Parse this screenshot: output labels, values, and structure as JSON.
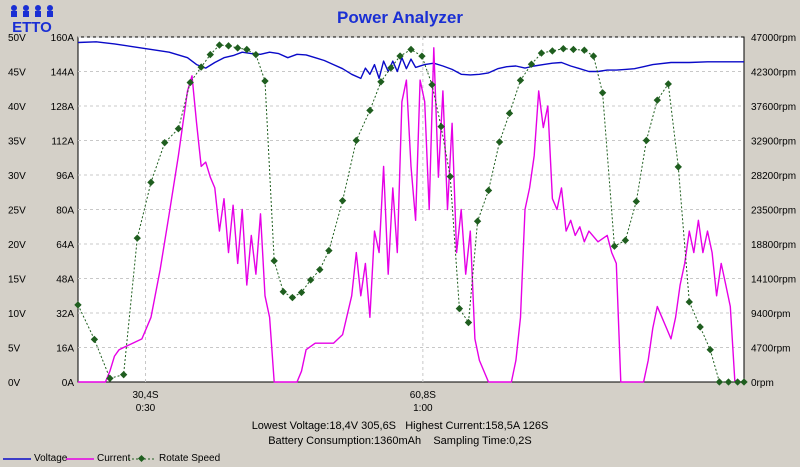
{
  "app": {
    "title": "Power Analyzer"
  },
  "chart_data": {
    "type": "line",
    "title": "Power Analyzer",
    "grid": true,
    "legend_placement": "bottom-left",
    "axes": {
      "voltage": {
        "ticks": [
          "0V",
          "5V",
          "10V",
          "15V",
          "20V",
          "25V",
          "30V",
          "35V",
          "40V",
          "45V",
          "50V"
        ],
        "range": [
          0,
          50
        ]
      },
      "current": {
        "ticks": [
          "0A",
          "16A",
          "32A",
          "48A",
          "64A",
          "80A",
          "96A",
          "112A",
          "128A",
          "144A",
          "160A"
        ],
        "range": [
          0,
          160
        ]
      },
      "rpm": {
        "ticks": [
          "0rpm",
          "4700rpm",
          "9400rpm",
          "14100rpm",
          "18800rpm",
          "23500rpm",
          "28200rpm",
          "32900rpm",
          "37600rpm",
          "42300rpm",
          "47000rpm"
        ],
        "range": [
          0,
          47000
        ]
      },
      "time_ticks": [
        {
          "t": 30.4,
          "label": "30,4S",
          "sub": "0:30"
        },
        {
          "t": 60.8,
          "label": "60,8S",
          "sub": "1:00"
        }
      ],
      "time_range": [
        23,
        96
      ]
    },
    "series": [
      {
        "name": "Voltage",
        "color": "#0a0ac8",
        "axis": "voltage",
        "style": "solid",
        "points": [
          [
            23,
            49.2
          ],
          [
            25,
            49.3
          ],
          [
            27,
            49.0
          ],
          [
            29,
            48.6
          ],
          [
            31,
            48.2
          ],
          [
            33,
            47.8
          ],
          [
            35,
            47.0
          ],
          [
            36,
            46.0
          ],
          [
            37,
            45.5
          ],
          [
            38,
            46.3
          ],
          [
            39,
            47.0
          ],
          [
            40,
            47.3
          ],
          [
            41,
            47.8
          ],
          [
            42,
            47.6
          ],
          [
            43,
            47.5
          ],
          [
            44,
            47.8
          ],
          [
            45,
            47.6
          ],
          [
            46,
            47.0
          ],
          [
            47,
            47.5
          ],
          [
            48,
            47.4
          ],
          [
            49,
            47.0
          ],
          [
            50,
            46.6
          ],
          [
            51,
            46.0
          ],
          [
            52,
            45.4
          ],
          [
            53,
            44.6
          ],
          [
            54,
            44.0
          ],
          [
            54.5,
            45.5
          ],
          [
            55,
            44.6
          ],
          [
            55.5,
            46.0
          ],
          [
            56,
            44.0
          ],
          [
            56.5,
            46.5
          ],
          [
            57,
            45.0
          ],
          [
            57.5,
            46.5
          ],
          [
            58,
            45.0
          ],
          [
            58.5,
            47.0
          ],
          [
            59,
            45.4
          ],
          [
            59.5,
            46.8
          ],
          [
            60,
            45.6
          ],
          [
            61,
            46.0
          ],
          [
            62,
            46.2
          ],
          [
            63,
            45.8
          ],
          [
            64,
            45.3
          ],
          [
            65,
            44.6
          ],
          [
            66,
            44.5
          ],
          [
            67,
            44.6
          ],
          [
            68,
            44.8
          ],
          [
            69,
            45.4
          ],
          [
            70,
            45.7
          ],
          [
            71,
            45.8
          ],
          [
            72,
            45.5
          ],
          [
            73,
            45.8
          ],
          [
            74,
            46.0
          ],
          [
            75,
            46.2
          ],
          [
            76,
            46.3
          ],
          [
            77,
            45.8
          ],
          [
            78,
            45.4
          ],
          [
            79,
            45.0
          ],
          [
            80,
            45.0
          ],
          [
            81,
            45.2
          ],
          [
            82,
            45.2
          ],
          [
            83,
            45.3
          ],
          [
            84,
            45.4
          ],
          [
            85,
            45.7
          ],
          [
            86,
            46.0
          ],
          [
            88,
            46.3
          ],
          [
            90,
            46.3
          ],
          [
            92,
            46.4
          ],
          [
            94,
            46.4
          ],
          [
            96,
            46.4
          ]
        ]
      },
      {
        "name": "Current",
        "color": "#e600e6",
        "axis": "current",
        "style": "solid",
        "points": [
          [
            23,
            0
          ],
          [
            25,
            0
          ],
          [
            26,
            0
          ],
          [
            26.5,
            5
          ],
          [
            27,
            12
          ],
          [
            27.5,
            15
          ],
          [
            28,
            16
          ],
          [
            29,
            18
          ],
          [
            30,
            20
          ],
          [
            31,
            30
          ],
          [
            32,
            52
          ],
          [
            33,
            78
          ],
          [
            34,
            105
          ],
          [
            35,
            135
          ],
          [
            35.5,
            142
          ],
          [
            36,
            120
          ],
          [
            36.5,
            100
          ],
          [
            37,
            102
          ],
          [
            37.5,
            95
          ],
          [
            38,
            90
          ],
          [
            38.5,
            70
          ],
          [
            39,
            85
          ],
          [
            39.5,
            60
          ],
          [
            40,
            82
          ],
          [
            40.5,
            55
          ],
          [
            41,
            80
          ],
          [
            41.5,
            45
          ],
          [
            42,
            68
          ],
          [
            42.5,
            50
          ],
          [
            43,
            78
          ],
          [
            43.5,
            40
          ],
          [
            44,
            30
          ],
          [
            44.5,
            0
          ],
          [
            46,
            0
          ],
          [
            47,
            0
          ],
          [
            47.5,
            5
          ],
          [
            48,
            15
          ],
          [
            49,
            18
          ],
          [
            50,
            18
          ],
          [
            51,
            18
          ],
          [
            52,
            22
          ],
          [
            53,
            40
          ],
          [
            53.5,
            60
          ],
          [
            54,
            40
          ],
          [
            54.5,
            55
          ],
          [
            55,
            30
          ],
          [
            55.5,
            70
          ],
          [
            56,
            60
          ],
          [
            56.5,
            100
          ],
          [
            57,
            50
          ],
          [
            57.5,
            90
          ],
          [
            58,
            60
          ],
          [
            58.5,
            130
          ],
          [
            59,
            140
          ],
          [
            59.5,
            100
          ],
          [
            60,
            75
          ],
          [
            60.5,
            140
          ],
          [
            61,
            130
          ],
          [
            61.5,
            80
          ],
          [
            62,
            155
          ],
          [
            62.5,
            95
          ],
          [
            63,
            135
          ],
          [
            63.5,
            80
          ],
          [
            64,
            120
          ],
          [
            64.5,
            60
          ],
          [
            65,
            80
          ],
          [
            65.5,
            50
          ],
          [
            66,
            70
          ],
          [
            66.5,
            20
          ],
          [
            67,
            10
          ],
          [
            68,
            0
          ],
          [
            70,
            0
          ],
          [
            70.5,
            0
          ],
          [
            71,
            10
          ],
          [
            71.5,
            30
          ],
          [
            72,
            80
          ],
          [
            72.5,
            90
          ],
          [
            73,
            105
          ],
          [
            73.5,
            135
          ],
          [
            74,
            118
          ],
          [
            74.5,
            128
          ],
          [
            75,
            85
          ],
          [
            75.5,
            80
          ],
          [
            76,
            90
          ],
          [
            76.5,
            70
          ],
          [
            77,
            75
          ],
          [
            77.5,
            68
          ],
          [
            78,
            72
          ],
          [
            78.5,
            65
          ],
          [
            79,
            70
          ],
          [
            80,
            65
          ],
          [
            81,
            68
          ],
          [
            81.5,
            60
          ],
          [
            82,
            55
          ],
          [
            82.5,
            0
          ],
          [
            84,
            0
          ],
          [
            85,
            0
          ],
          [
            85.5,
            10
          ],
          [
            86,
            25
          ],
          [
            86.5,
            35
          ],
          [
            87,
            30
          ],
          [
            87.5,
            25
          ],
          [
            88,
            20
          ],
          [
            88.5,
            30
          ],
          [
            89,
            45
          ],
          [
            89.5,
            55
          ],
          [
            90,
            70
          ],
          [
            90.5,
            60
          ],
          [
            91,
            75
          ],
          [
            91.5,
            60
          ],
          [
            92,
            70
          ],
          [
            92.5,
            60
          ],
          [
            93,
            40
          ],
          [
            93.5,
            55
          ],
          [
            94,
            45
          ],
          [
            94.5,
            35
          ],
          [
            95,
            0
          ],
          [
            96,
            0
          ]
        ]
      },
      {
        "name": "Rotate Speed",
        "color": "#1f5e1f",
        "axis": "rpm",
        "style": "dashed",
        "markers": "diamond",
        "points": [
          [
            23,
            10500
          ],
          [
            24.8,
            5800
          ],
          [
            26.5,
            500
          ],
          [
            28,
            1000
          ],
          [
            29.5,
            19600
          ],
          [
            31,
            27200
          ],
          [
            32.5,
            32600
          ],
          [
            34,
            34500
          ],
          [
            35.3,
            40800
          ],
          [
            36.5,
            42900
          ],
          [
            37.5,
            44600
          ],
          [
            38.5,
            45900
          ],
          [
            39.5,
            45800
          ],
          [
            40.5,
            45500
          ],
          [
            41.5,
            45300
          ],
          [
            42.5,
            44600
          ],
          [
            43.5,
            41000
          ],
          [
            44.5,
            16500
          ],
          [
            45.5,
            12300
          ],
          [
            46.5,
            11500
          ],
          [
            47.5,
            12200
          ],
          [
            48.5,
            13900
          ],
          [
            49.5,
            15300
          ],
          [
            50.5,
            17900
          ],
          [
            52,
            24700
          ],
          [
            53.5,
            32900
          ],
          [
            55,
            37000
          ],
          [
            56.2,
            40900
          ],
          [
            57.3,
            42800
          ],
          [
            58.3,
            44400
          ],
          [
            59.5,
            45300
          ],
          [
            60.7,
            44400
          ],
          [
            61.8,
            40500
          ],
          [
            62.8,
            34800
          ],
          [
            63.8,
            28000
          ],
          [
            64.8,
            10000
          ],
          [
            65.8,
            8100
          ],
          [
            66.8,
            21900
          ],
          [
            68,
            26100
          ],
          [
            69.2,
            32700
          ],
          [
            70.3,
            36600
          ],
          [
            71.5,
            41100
          ],
          [
            72.7,
            43300
          ],
          [
            73.8,
            44800
          ],
          [
            75,
            45100
          ],
          [
            76.2,
            45400
          ],
          [
            77.3,
            45300
          ],
          [
            78.5,
            45200
          ],
          [
            79.5,
            44400
          ],
          [
            80.5,
            39400
          ],
          [
            81.8,
            18500
          ],
          [
            83,
            19300
          ],
          [
            84.2,
            24600
          ],
          [
            85.3,
            32900
          ],
          [
            86.5,
            38400
          ],
          [
            87.7,
            40600
          ],
          [
            88.8,
            29300
          ],
          [
            90,
            10900
          ],
          [
            91.2,
            7500
          ],
          [
            92.3,
            4400
          ],
          [
            93.3,
            0
          ],
          [
            94.3,
            0
          ],
          [
            95.3,
            0
          ],
          [
            96,
            0
          ]
        ]
      }
    ]
  },
  "summary": {
    "lowest_voltage": "Lowest Voltage:18,4V 305,6S",
    "highest_current": "Highest Current:158,5A 126S",
    "battery_consumption": "Battery Consumption:1360mAh",
    "sampling_time": "Sampling Time:0,2S"
  },
  "legend": [
    {
      "label": "Voltage",
      "color": "#0a0ac8",
      "icon": "solid-line-icon"
    },
    {
      "label": "Current",
      "color": "#e600e6",
      "icon": "solid-line-icon"
    },
    {
      "label": "Rotate Speed",
      "color": "#1f5e1f",
      "icon": "dashed-diamond-line-icon"
    }
  ],
  "logo": {
    "text": "ETTO"
  }
}
